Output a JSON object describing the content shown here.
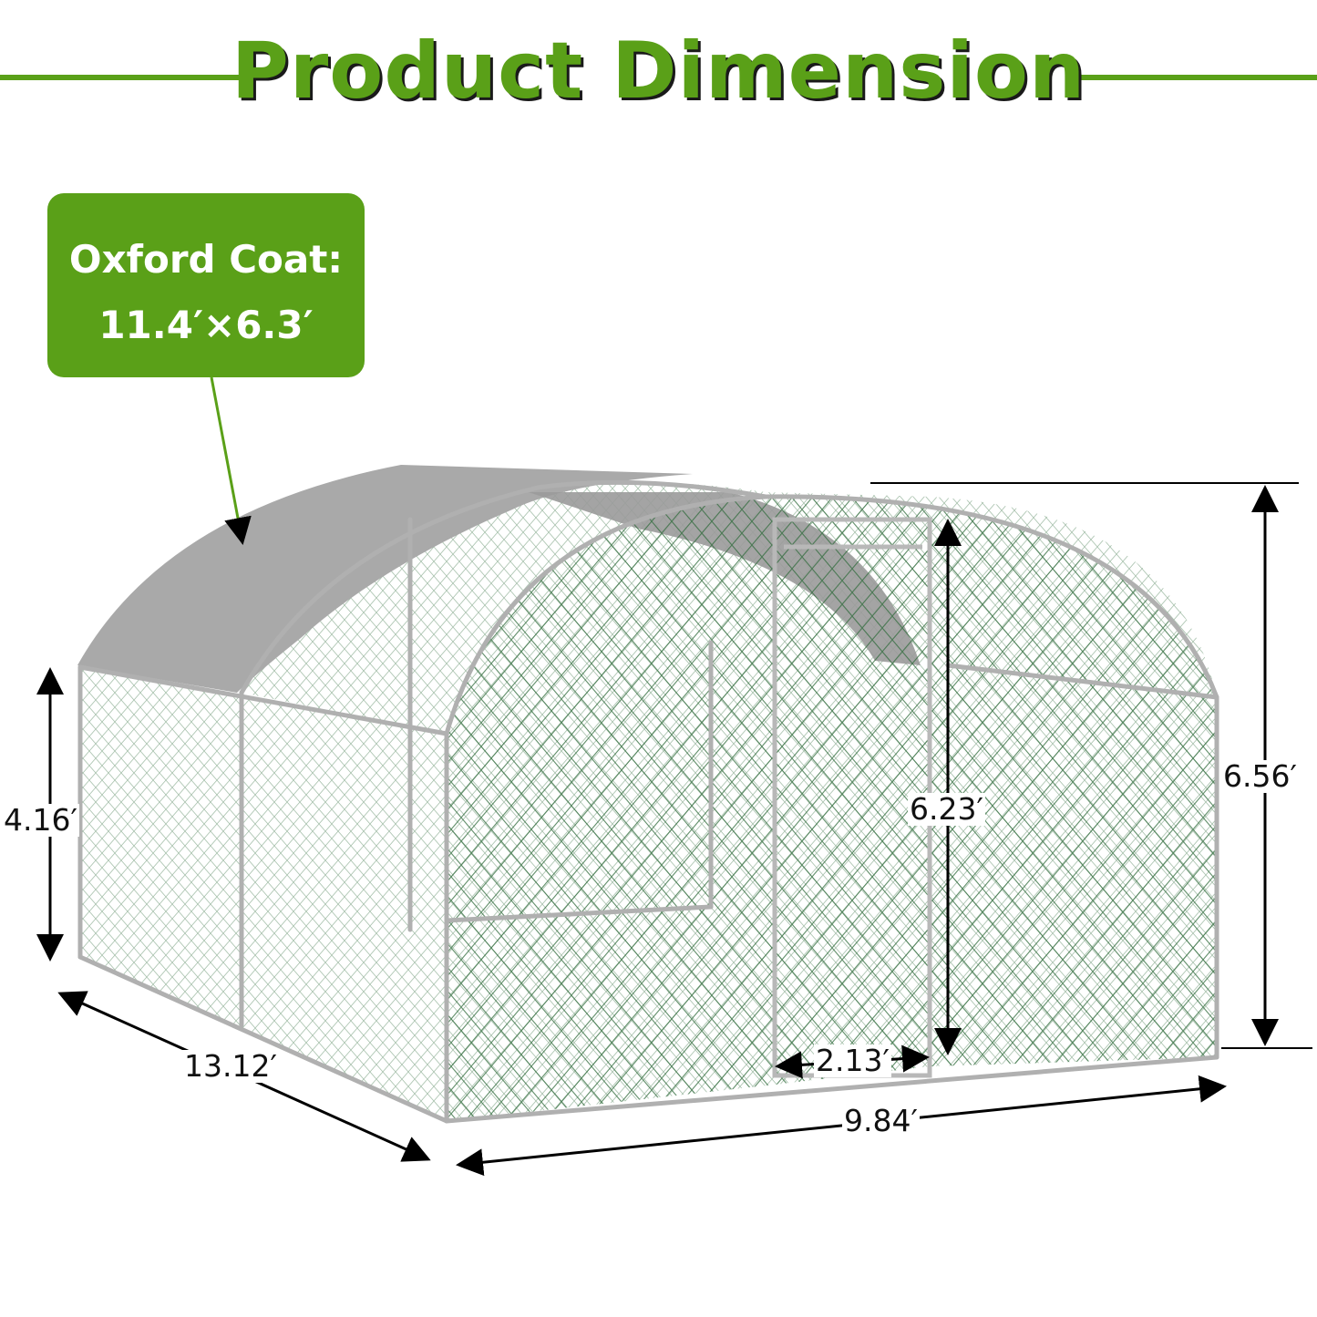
{
  "title": "Product Dimension",
  "callout": {
    "line1": "Oxford Coat:",
    "line2": "11.4′×6.3′"
  },
  "dimensions": {
    "side_height": "4.16′",
    "length": "13.12′",
    "width": "9.84′",
    "door_width": "2.13′",
    "door_height": "6.23′",
    "total_height": "6.56′"
  },
  "colors": {
    "accent": "#5aa018",
    "mesh": "#2f6b3a",
    "frame": "#b8b8b8",
    "cover": "#a9a9a9"
  }
}
